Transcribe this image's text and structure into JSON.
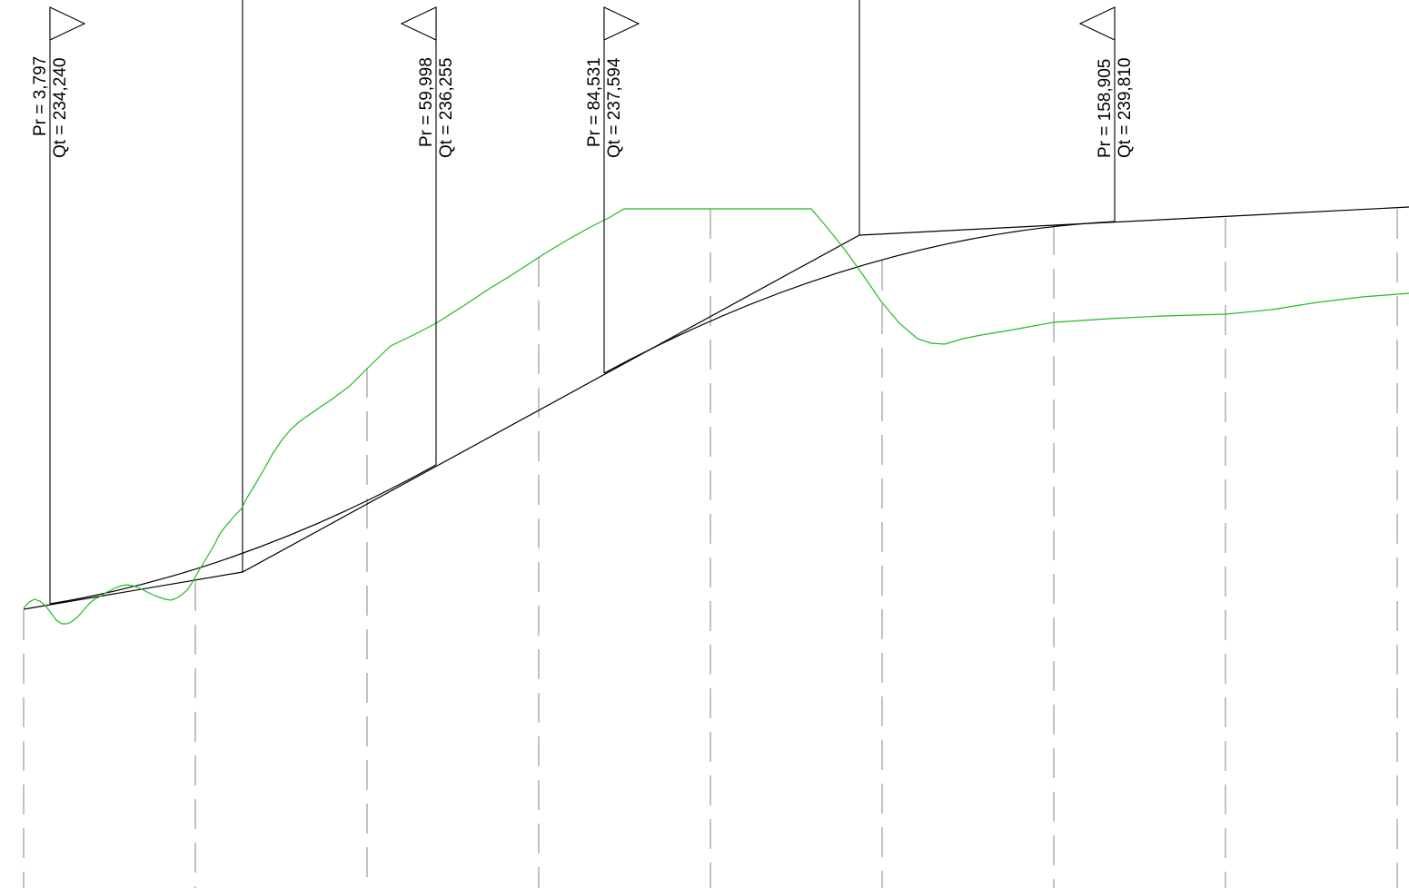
{
  "colors": {
    "background": "#ffffff",
    "lines": "#000000",
    "terrain": "#22bb22",
    "grid": "#9a9a9a"
  },
  "markers": [
    {
      "pr_label": "Pr = 3,797",
      "qt_label": "Qt = 234,240",
      "arrow": "right"
    },
    {
      "pr_label": "Pr = 59,998",
      "qt_label": "Qt = 236,255",
      "arrow": "left"
    },
    {
      "pr_label": "Pr = 84,531",
      "qt_label": "Qt = 237,594",
      "arrow": "right"
    },
    {
      "pr_label": "Pr = 158,905",
      "qt_label": "Qt = 239,810",
      "arrow": "left"
    }
  ]
}
